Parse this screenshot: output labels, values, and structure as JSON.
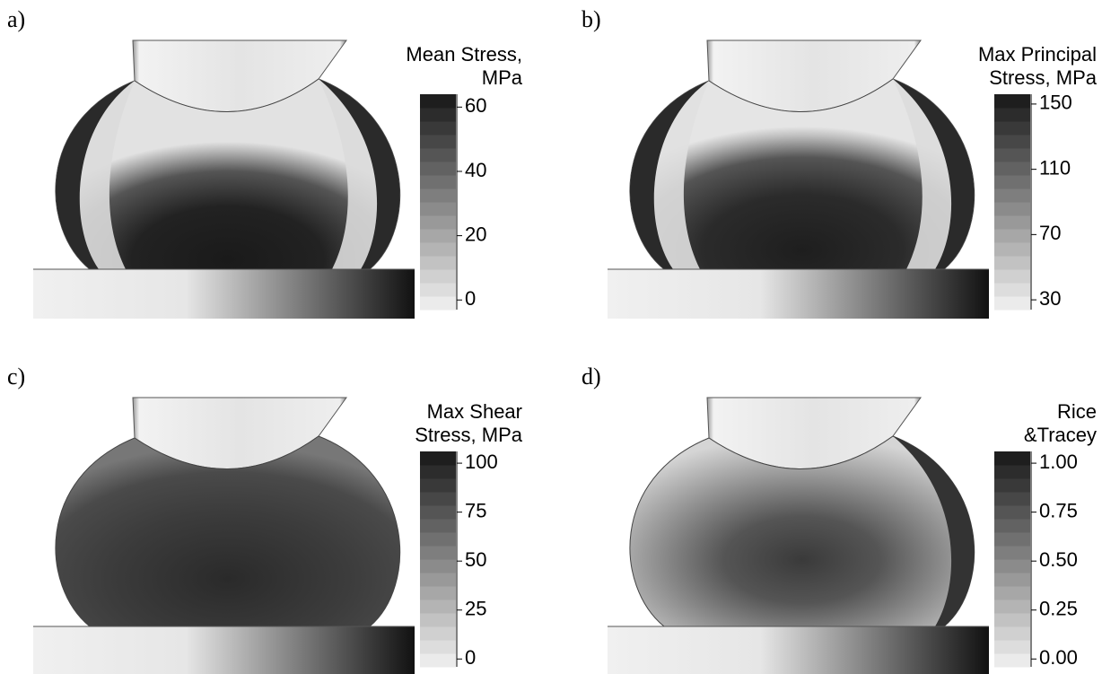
{
  "panels": [
    {
      "label": "a)",
      "title": [
        "Mean Stress,",
        "MPa"
      ],
      "range": [
        -3,
        64
      ],
      "ticks": [
        0,
        20,
        40,
        60
      ],
      "style": "mean"
    },
    {
      "label": "b)",
      "title": [
        "Max Principal",
        "Stress, MPa"
      ],
      "range": [
        24,
        156
      ],
      "ticks": [
        30,
        70,
        110,
        150
      ],
      "style": "principal"
    },
    {
      "label": "c)",
      "title": [
        "Max Shear",
        "Stress, MPa"
      ],
      "range": [
        -4,
        106
      ],
      "ticks": [
        0,
        25,
        50,
        75,
        100
      ],
      "style": "shear"
    },
    {
      "label": "d)",
      "title": [
        "Rice",
        "&Tracey"
      ],
      "range": [
        -0.04,
        1.06
      ],
      "ticks": [
        {
          "value": 0,
          "label": "0.00"
        },
        {
          "value": 0.25,
          "label": "0.25"
        },
        {
          "value": 0.5,
          "label": "0.50"
        },
        {
          "value": 0.75,
          "label": "0.75"
        },
        {
          "value": 1,
          "label": "1.00"
        }
      ],
      "style": "rice"
    }
  ]
}
